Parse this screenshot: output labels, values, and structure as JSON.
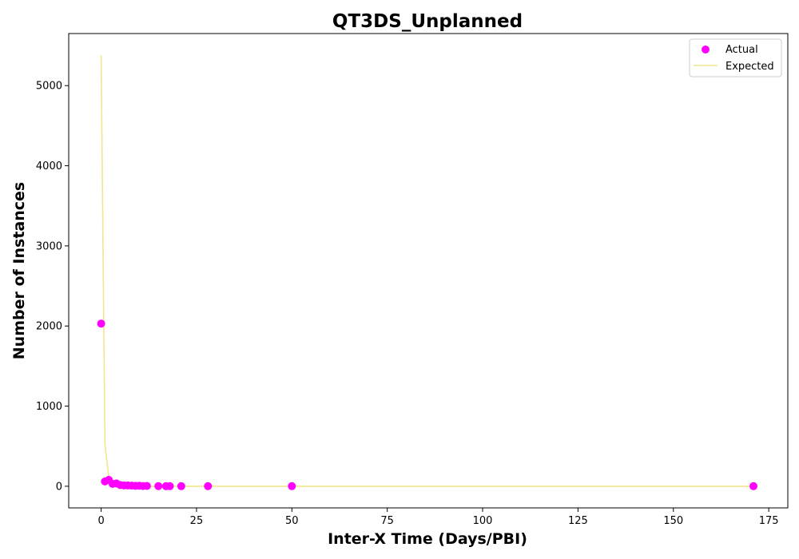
{
  "chart_data": {
    "type": "scatter",
    "title": "QT3DS_Unplanned",
    "xlabel": "Inter-X Time (Days/PBI)",
    "ylabel": "Number of Instances",
    "xlim": [
      -8.5,
      180
    ],
    "ylim": [
      -270,
      5650
    ],
    "xticks": [
      0,
      25,
      50,
      75,
      100,
      125,
      150,
      175
    ],
    "yticks": [
      0,
      1000,
      2000,
      3000,
      4000,
      5000
    ],
    "xtick_labels": [
      "0",
      "25",
      "50",
      "75",
      "100",
      "125",
      "150",
      "175"
    ],
    "ytick_labels": [
      "0",
      "1000",
      "2000",
      "3000",
      "4000",
      "5000"
    ],
    "legend_position": "top-right",
    "grid": false,
    "series": [
      {
        "name": "Actual",
        "kind": "scatter",
        "color": "#ff00ff",
        "x": [
          0,
          1,
          2,
          3,
          4,
          5,
          6,
          7,
          8,
          9,
          10,
          11,
          12,
          15,
          17,
          18,
          21,
          28,
          50,
          171
        ],
        "y": [
          2030,
          60,
          80,
          30,
          35,
          15,
          10,
          10,
          8,
          5,
          6,
          3,
          4,
          2,
          1,
          1,
          1,
          1,
          1,
          1
        ]
      },
      {
        "name": "Expected",
        "kind": "line",
        "color": "#f0e68c",
        "x": [
          0,
          1,
          2,
          3,
          4,
          5,
          6,
          8,
          10,
          15,
          20,
          30,
          50,
          100,
          171
        ],
        "y": [
          5380,
          520,
          120,
          20,
          6,
          2,
          1,
          0.5,
          0.2,
          0,
          0,
          0,
          0,
          0,
          0
        ]
      }
    ]
  }
}
